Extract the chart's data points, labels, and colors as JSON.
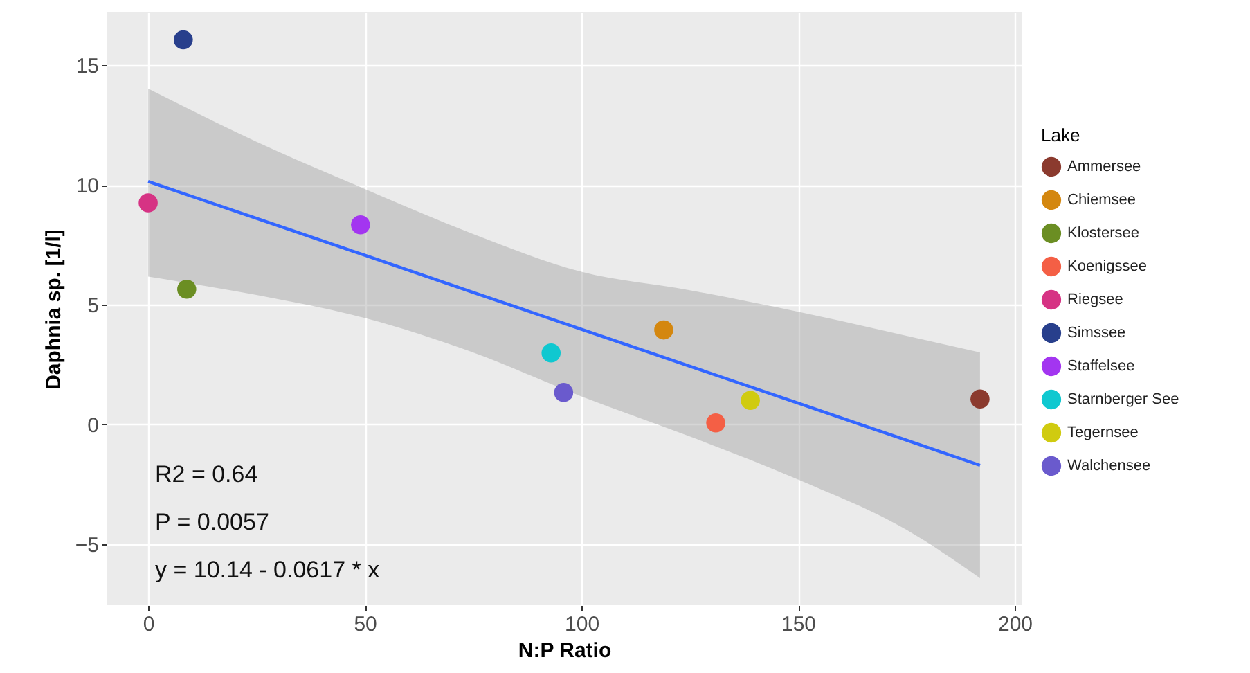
{
  "chart_data": {
    "type": "scatter",
    "xlabel": "N:P Ratio",
    "ylabel": "Daphnia sp. [1/l]",
    "legend_title": "Lake",
    "legend": "right",
    "grid": true,
    "marker": "circle",
    "xlim": [
      -9.6,
      201.6
    ],
    "ylim": [
      -7.55,
      17.2
    ],
    "xticks": [
      0,
      50,
      100,
      150,
      200
    ],
    "yticks": [
      -5,
      0,
      5,
      10,
      15
    ],
    "annotations": [
      "R2 =  0.64",
      "P = 0.0057",
      "y = 10.14 - 0.0617 * x"
    ],
    "series": [
      {
        "name": "Ammersee",
        "color": "#8b3a2e",
        "x": [
          192
        ],
        "values": [
          1.06
        ]
      },
      {
        "name": "Chiemsee",
        "color": "#d4870f",
        "x": [
          119
        ],
        "values": [
          3.94
        ]
      },
      {
        "name": "Klostersee",
        "color": "#6b8e23",
        "x": [
          8.9
        ],
        "values": [
          5.64
        ]
      },
      {
        "name": "Koenigssee",
        "color": "#f45f45",
        "x": [
          131
        ],
        "values": [
          0.06
        ]
      },
      {
        "name": "Riegsee",
        "color": "#d63384",
        "x": [
          0
        ],
        "values": [
          9.25
        ]
      },
      {
        "name": "Simssee",
        "color": "#283f8c",
        "x": [
          8.1
        ],
        "values": [
          16.06
        ]
      },
      {
        "name": "Staffelsee",
        "color": "#a335f0",
        "x": [
          49
        ],
        "values": [
          8.33
        ]
      },
      {
        "name": "Starnberger See",
        "color": "#0fc8d0",
        "x": [
          93
        ],
        "values": [
          2.98
        ]
      },
      {
        "name": "Tegernsee",
        "color": "#d0cb10",
        "x": [
          139
        ],
        "values": [
          1.0
        ]
      },
      {
        "name": "Walchensee",
        "color": "#6a5acd",
        "x": [
          95.9
        ],
        "values": [
          1.33
        ]
      },
      {
        "type": "line",
        "color": "#3366ff",
        "marker": "none",
        "x": [
          0,
          25,
          50,
          75,
          100,
          125,
          150,
          175,
          192
        ],
        "values": [
          10.14,
          8.6,
          7.06,
          5.51,
          3.97,
          2.43,
          0.89,
          -0.66,
          -1.71
        ],
        "lower": [
          6.17,
          5.4,
          4.44,
          3.0,
          1.17,
          -0.5,
          -2.3,
          -4.4,
          -6.42
        ],
        "upper": [
          14.02,
          11.8,
          9.83,
          7.95,
          6.37,
          5.6,
          4.7,
          3.7,
          3.0
        ]
      }
    ]
  }
}
